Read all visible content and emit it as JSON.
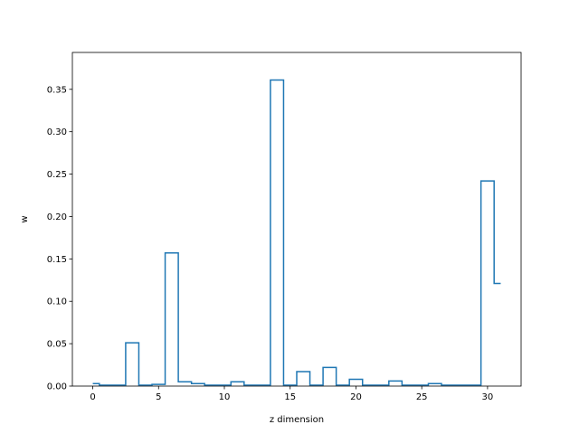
{
  "chart_data": {
    "type": "step",
    "title": "",
    "xlabel": "z dimension",
    "ylabel": "w",
    "xlim": [
      -1.55,
      32.55
    ],
    "ylim": [
      0,
      0.3935
    ],
    "xticks": [
      0,
      5,
      10,
      15,
      20,
      25,
      30
    ],
    "yticks": [
      0.0,
      0.05,
      0.1,
      0.15,
      0.2,
      0.25,
      0.3,
      0.35
    ],
    "ytick_labels": [
      "0.00",
      "0.05",
      "0.10",
      "0.15",
      "0.20",
      "0.25",
      "0.30",
      "0.35"
    ],
    "line_color": "#1f77b4",
    "step_where": "mid",
    "x": [
      0,
      1,
      2,
      3,
      4,
      5,
      6,
      7,
      8,
      9,
      10,
      11,
      12,
      13,
      14,
      15,
      16,
      17,
      18,
      19,
      20,
      21,
      22,
      23,
      24,
      25,
      26,
      27,
      28,
      29,
      30,
      31
    ],
    "values": [
      0.003,
      0.001,
      0.001,
      0.051,
      0.001,
      0.002,
      0.157,
      0.005,
      0.003,
      0.001,
      0.001,
      0.005,
      0.001,
      0.001,
      0.361,
      0.001,
      0.017,
      0.001,
      0.022,
      0.001,
      0.008,
      0.001,
      0.001,
      0.006,
      0.001,
      0.001,
      0.003,
      0.001,
      0.001,
      0.001,
      0.242,
      0.121
    ]
  }
}
